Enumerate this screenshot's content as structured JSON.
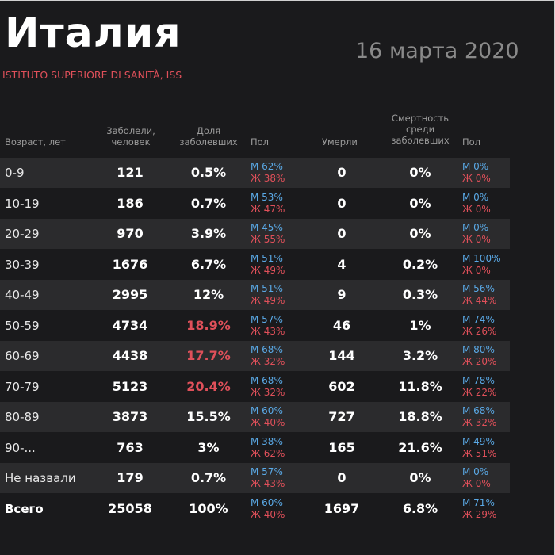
{
  "title": "Италия",
  "date": "16 марта 2020",
  "source": "ISTITUTO SUPERIORE DI SANITÀ, ISS",
  "headers": {
    "age": "Возраст, лет",
    "cases": [
      "Заболели,",
      "человек"
    ],
    "share": [
      "Доля",
      "заболевших"
    ],
    "sex": "Пол",
    "deaths": "Умерли",
    "mortality": [
      "Смертность",
      "среди",
      "заболевших"
    ],
    "sex2": "Пол"
  },
  "rows": [
    {
      "age": "0-9",
      "cases": "121",
      "share": "0.5%",
      "share_red": false,
      "m": "М 62%",
      "f": "Ж 38%",
      "deaths": "0",
      "mortality": "0%",
      "dm": "М 0%",
      "df": "Ж 0%"
    },
    {
      "age": "10-19",
      "cases": "186",
      "share": "0.7%",
      "share_red": false,
      "m": "М 53%",
      "f": "Ж 47%",
      "deaths": "0",
      "mortality": "0%",
      "dm": "М 0%",
      "df": "Ж 0%"
    },
    {
      "age": "20-29",
      "cases": "970",
      "share": "3.9%",
      "share_red": false,
      "m": "М 45%",
      "f": "Ж 55%",
      "deaths": "0",
      "mortality": "0%",
      "dm": "М 0%",
      "df": "Ж 0%"
    },
    {
      "age": "30-39",
      "cases": "1676",
      "share": "6.7%",
      "share_red": false,
      "m": "М 51%",
      "f": "Ж 49%",
      "deaths": "4",
      "mortality": "0.2%",
      "dm": "М 100%",
      "df": "Ж 0%"
    },
    {
      "age": "40-49",
      "cases": "2995",
      "share": "12%",
      "share_red": false,
      "m": "М 51%",
      "f": "Ж 49%",
      "deaths": "9",
      "mortality": "0.3%",
      "dm": "М 56%",
      "df": "Ж 44%"
    },
    {
      "age": "50-59",
      "cases": "4734",
      "share": "18.9%",
      "share_red": true,
      "m": "М 57%",
      "f": "Ж 43%",
      "deaths": "46",
      "mortality": "1%",
      "dm": "М 74%",
      "df": "Ж 26%"
    },
    {
      "age": "60-69",
      "cases": "4438",
      "share": "17.7%",
      "share_red": true,
      "m": "М 68%",
      "f": "Ж 32%",
      "deaths": "144",
      "mortality": "3.2%",
      "dm": "М 80%",
      "df": "Ж 20%"
    },
    {
      "age": "70-79",
      "cases": "5123",
      "share": "20.4%",
      "share_red": true,
      "m": "М 68%",
      "f": "Ж 32%",
      "deaths": "602",
      "mortality": "11.8%",
      "dm": "М 78%",
      "df": "Ж 22%"
    },
    {
      "age": "80-89",
      "cases": "3873",
      "share": "15.5%",
      "share_red": false,
      "m": "М 60%",
      "f": "Ж 40%",
      "deaths": "727",
      "mortality": "18.8%",
      "dm": "М 68%",
      "df": "Ж 32%"
    },
    {
      "age": "90-...",
      "cases": "763",
      "share": "3%",
      "share_red": false,
      "m": "М 38%",
      "f": "Ж 62%",
      "deaths": "165",
      "mortality": "21.6%",
      "dm": "М 49%",
      "df": "Ж 51%"
    },
    {
      "age": "Не назвали",
      "cases": "179",
      "share": "0.7%",
      "share_red": false,
      "m": "М 57%",
      "f": "Ж 43%",
      "deaths": "0",
      "mortality": "0%",
      "dm": "М 0%",
      "df": "Ж 0%"
    },
    {
      "age": "Всего",
      "cases": "25058",
      "share": "100%",
      "share_red": false,
      "m": "М 60%",
      "f": "Ж 40%",
      "deaths": "1697",
      "mortality": "6.8%",
      "dm": "М 71%",
      "df": "Ж 29%",
      "total": true
    }
  ],
  "colors": {
    "background": "#1a1a1c",
    "row_shade": "#2b2b2d",
    "accent_red": "#e0505a",
    "male_blue": "#5aa9e6"
  }
}
